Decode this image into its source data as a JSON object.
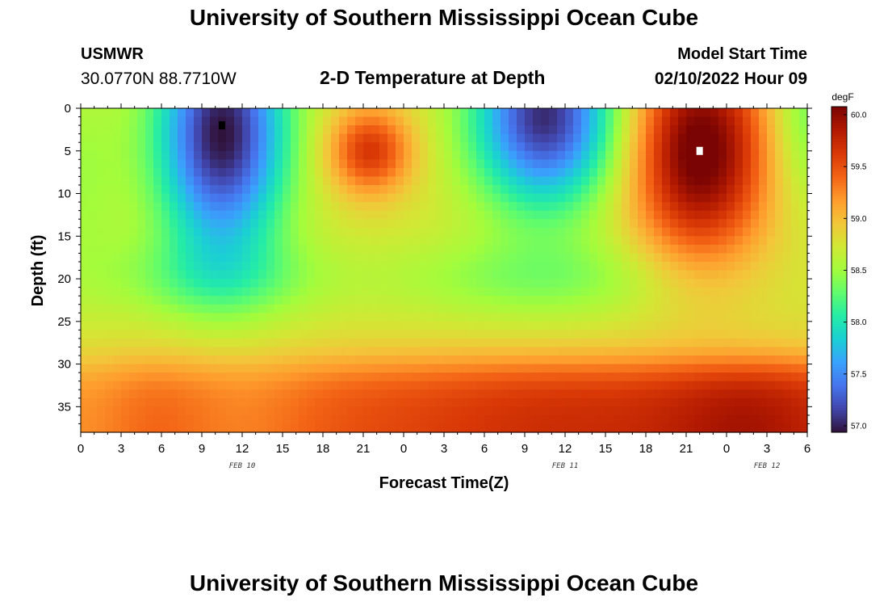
{
  "header": {
    "title": "University of Southern Mississippi Ocean Cube",
    "station_name": "USMWR",
    "station_coords": "30.0770N  88.7710W",
    "plot_title": "2-D Temperature at Depth",
    "run_label": "Model Start Time",
    "run_time": "02/10/2022 Hour 09"
  },
  "footer": {
    "title": "University of Southern Mississippi Ocean Cube"
  },
  "chart_data": {
    "type": "heatmap",
    "xlabel": "Forecast Time(Z)",
    "ylabel": "Depth (ft)",
    "colorbar_unit": "degF",
    "x_range_hours": [
      0,
      54
    ],
    "y_range_ft": [
      0,
      38
    ],
    "x_tick_labels": [
      "0",
      "3",
      "6",
      "9",
      "12",
      "15",
      "18",
      "21",
      "0",
      "3",
      "6",
      "9",
      "12",
      "15",
      "18",
      "21",
      "0",
      "3",
      "6"
    ],
    "y_tick_labels": [
      "0",
      "5",
      "10",
      "15",
      "20",
      "25",
      "30",
      "35"
    ],
    "date_labels": [
      {
        "hour": 12,
        "label": "FEB 10"
      },
      {
        "hour": 36,
        "label": "FEB 11"
      },
      {
        "hour": 51,
        "label": "FEB 12"
      }
    ],
    "color_range": [
      57.0,
      60.0
    ],
    "colorbar_ticks": [
      "60.0",
      "59.5",
      "59.0",
      "58.5",
      "58.0",
      "57.5",
      "57.0"
    ],
    "min_marker": {
      "hour": 10.5,
      "depth_ft": 2,
      "value_approx": 57.0
    },
    "max_marker": {
      "hour": 46,
      "depth_ft": 5,
      "value_approx": 60.0
    },
    "features": [
      {
        "kind": "cold",
        "hour_center": 10.5,
        "depth_center_ft": 2,
        "value": 57.0
      },
      {
        "kind": "warm",
        "hour_center": 22,
        "depth_center_ft": 5,
        "value": 59.6
      },
      {
        "kind": "cold",
        "hour_center": 34.5,
        "depth_center_ft": 1,
        "value": 57.1
      },
      {
        "kind": "warm",
        "hour_center": 46,
        "depth_center_ft": 5,
        "value": 60.0
      },
      {
        "kind": "warm_bottom_layer",
        "depth_from_ft": 29,
        "value": 59.5
      }
    ],
    "colormap": [
      "#30123b",
      "#4145ab",
      "#4675ed",
      "#39a2fc",
      "#1bcfd4",
      "#24eca6",
      "#61fc6c",
      "#a4fc3b",
      "#d1e834",
      "#f3c63a",
      "#fe9b2d",
      "#f36315",
      "#d93806",
      "#b11901",
      "#7a0403"
    ]
  }
}
